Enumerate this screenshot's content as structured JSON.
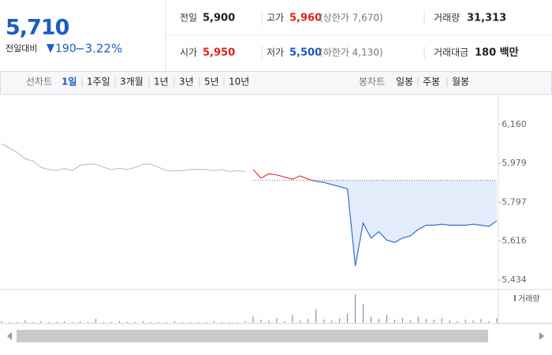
{
  "header": {
    "price": "5,710",
    "change_label": "전일대비",
    "change": "190",
    "change_rate": "−3.22%",
    "info": [
      [
        {
          "label": "전일",
          "value": "5,900"
        },
        {
          "label": "고가",
          "value": "5,960",
          "note": "(상한가 7,670)"
        },
        {
          "label": "거래량",
          "value": "31,313"
        }
      ],
      [
        {
          "label": "시가",
          "value": "5,950"
        },
        {
          "label": "저가",
          "value": "5,500",
          "note": "(하한가 4,130)"
        },
        {
          "label": "거래대금",
          "value": "180 백만"
        }
      ]
    ]
  },
  "tabs": {
    "line_label": "선차트",
    "line": [
      "1일",
      "1주일",
      "3개월",
      "1년",
      "3년",
      "5년",
      "10년"
    ],
    "candle_label": "봉차트",
    "candle": [
      "일봉",
      "주봉",
      "월봉"
    ]
  },
  "chart_data": {
    "type": "line",
    "categories": [
      null,
      null,
      null,
      null,
      null,
      null,
      null,
      null,
      null,
      null,
      null,
      null,
      null,
      null,
      null,
      null,
      null,
      null,
      null,
      null,
      null,
      null,
      null,
      null,
      null,
      null,
      null,
      null,
      null,
      null,
      null,
      null,
      null,
      null,
      null,
      null,
      null,
      null,
      null,
      null,
      null,
      null,
      null,
      null,
      null,
      null,
      null,
      null,
      null,
      null,
      null,
      null,
      null,
      null,
      null,
      null,
      null,
      null,
      null,
      null,
      null,
      null,
      null,
      null
    ],
    "series": [
      {
        "color": "#c4c4c4",
        "values": [
          6070,
          6050,
          6030,
          6000,
          5990,
          5960,
          5950,
          5945,
          5955,
          5945,
          5970,
          5975,
          5975,
          5960,
          5950,
          5955,
          5950,
          5960,
          5975,
          5975,
          5960,
          5945,
          5945,
          5945,
          5950,
          5950,
          5950,
          5945,
          5950,
          5940,
          5945,
          5940,
          null,
          null,
          null,
          null,
          null,
          null,
          null,
          null,
          null,
          null,
          null,
          null,
          null,
          null,
          null,
          null,
          null,
          null,
          null,
          null,
          null,
          null,
          null,
          null,
          null,
          null,
          null,
          null,
          null,
          null,
          null,
          null
        ]
      },
      {
        "color": "#2f6fd0",
        "up_color": "#e8343a",
        "fill": "#e3ecfa",
        "values": [
          null,
          null,
          null,
          null,
          null,
          null,
          null,
          null,
          null,
          null,
          null,
          null,
          null,
          null,
          null,
          null,
          null,
          null,
          null,
          null,
          null,
          null,
          null,
          null,
          null,
          null,
          null,
          null,
          null,
          null,
          null,
          null,
          5950,
          5910,
          5930,
          5925,
          5915,
          5905,
          5920,
          5905,
          5895,
          5890,
          5880,
          5870,
          5860,
          5500,
          5700,
          5630,
          5660,
          5620,
          5610,
          5630,
          5640,
          5670,
          5690,
          5690,
          5695,
          5690,
          5690,
          5690,
          5695,
          5690,
          5685,
          5710
        ]
      }
    ],
    "baseline": 5900,
    "ylim": [
      5390,
      6292
    ],
    "yticks": [
      {
        "value": 6160,
        "label": "6,160"
      },
      {
        "value": 5979,
        "label": "5,979"
      },
      {
        "value": 5797,
        "label": "5,797"
      },
      {
        "value": 5616,
        "label": "5,616"
      },
      {
        "value": 5434,
        "label": "5,434"
      }
    ],
    "volume": {
      "name": "거래량",
      "color": "#8a6fb0",
      "vlim": [
        0,
        40
      ],
      "values": [
        2,
        1,
        1,
        3,
        1,
        2,
        1,
        1,
        2,
        1,
        2,
        1,
        5,
        1,
        1,
        2,
        1,
        1,
        2,
        1,
        1,
        1,
        2,
        1,
        1,
        1,
        1,
        2,
        1,
        1,
        1,
        2,
        8,
        4,
        3,
        6,
        2,
        10,
        3,
        5,
        18,
        4,
        3,
        6,
        12,
        38,
        25,
        8,
        5,
        10,
        4,
        6,
        3,
        8,
        5,
        4,
        6,
        3,
        2,
        4,
        3,
        5,
        2,
        6
      ]
    }
  }
}
